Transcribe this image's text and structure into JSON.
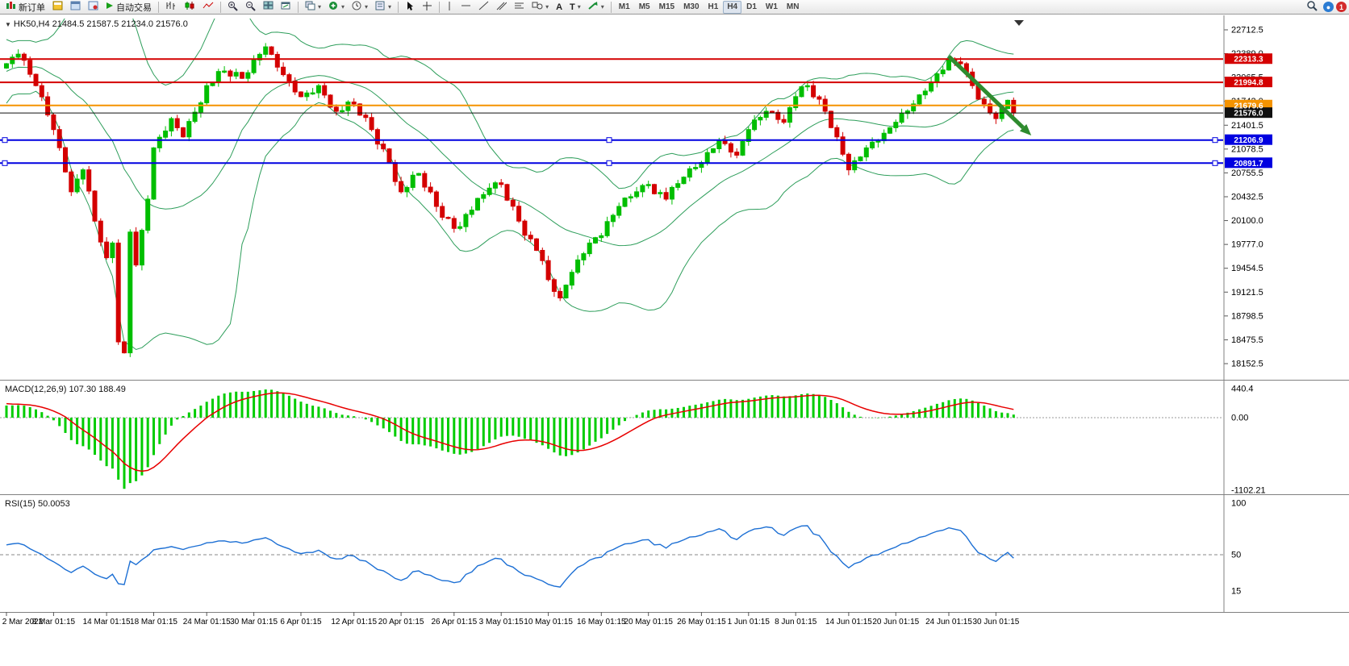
{
  "toolbar": {
    "new_order_label": "新订单",
    "autotrade_label": "自动交易",
    "timeframes": [
      {
        "label": "M1"
      },
      {
        "label": "M5"
      },
      {
        "label": "M15"
      },
      {
        "label": "M30"
      },
      {
        "label": "H1"
      },
      {
        "label": "H4",
        "active": true
      },
      {
        "label": "D1"
      },
      {
        "label": "W1"
      },
      {
        "label": "MN"
      }
    ],
    "notification_badge": "1"
  },
  "chart": {
    "symbol_label": "HK50,H4  21484.5 21587.5 21234.0 21576.0",
    "macd_label": "MACD(12,26,9) 107.30 188.49",
    "rsi_label": "RSI(15) 50.0053"
  },
  "chart_data": [
    {
      "type": "candlestick",
      "symbol": "HK50",
      "timeframe": "H4",
      "ohlc_current": {
        "open": 21484.5,
        "high": 21587.5,
        "low": 21234.0,
        "close": 21576.0
      },
      "price_range": [
        18152.5,
        22712.5
      ],
      "y_axis_ticks": [
        "22712.5",
        "22389.0",
        "22065.5",
        "21742.0",
        "21401.5",
        "21078.5",
        "20755.5",
        "20432.5",
        "20100.0",
        "19777.0",
        "19454.5",
        "19121.5",
        "18798.5",
        "18475.5",
        "18152.5"
      ],
      "x_axis_labels": [
        "2 Mar 2022",
        "8 Mar 01:15",
        "14 Mar 01:15",
        "18 Mar 01:15",
        "24 Mar 01:15",
        "30 Mar 01:15",
        "6 Apr 01:15",
        "12 Apr 01:15",
        "20 Apr 01:15",
        "26 Apr 01:15",
        "3 May 01:15",
        "10 May 01:15",
        "16 May 01:15",
        "20 May 01:15",
        "26 May 01:15",
        "1 Jun 01:15",
        "8 Jun 01:15",
        "14 Jun 01:15",
        "20 Jun 01:15",
        "24 Jun 01:15",
        "30 Jun 01:15"
      ],
      "x_label_indices": [
        0,
        8,
        17,
        25,
        34,
        42,
        50,
        59,
        67,
        76,
        84,
        92,
        101,
        109,
        118,
        126,
        134,
        143,
        151,
        160,
        168
      ],
      "candle_count": 172,
      "close_anchors": [
        [
          0,
          22250
        ],
        [
          2,
          22380
        ],
        [
          5,
          21950
        ],
        [
          8,
          21350
        ],
        [
          11,
          20500
        ],
        [
          13,
          20800
        ],
        [
          15,
          20100
        ],
        [
          17,
          19600
        ],
        [
          18,
          19800
        ],
        [
          19,
          18450
        ],
        [
          20,
          18300
        ],
        [
          21,
          19950
        ],
        [
          22,
          19500
        ],
        [
          24,
          20400
        ],
        [
          25,
          21100
        ],
        [
          28,
          21500
        ],
        [
          30,
          21250
        ],
        [
          34,
          21950
        ],
        [
          37,
          22150
        ],
        [
          40,
          22050
        ],
        [
          42,
          22300
        ],
        [
          44,
          22480
        ],
        [
          47,
          22100
        ],
        [
          50,
          21800
        ],
        [
          53,
          21950
        ],
        [
          56,
          21600
        ],
        [
          59,
          21700
        ],
        [
          62,
          21350
        ],
        [
          65,
          20900
        ],
        [
          67,
          20500
        ],
        [
          70,
          20750
        ],
        [
          73,
          20300
        ],
        [
          76,
          20000
        ],
        [
          79,
          20250
        ],
        [
          82,
          20550
        ],
        [
          84,
          20600
        ],
        [
          87,
          20100
        ],
        [
          90,
          19700
        ],
        [
          92,
          19300
        ],
        [
          94,
          19050
        ],
        [
          96,
          19400
        ],
        [
          99,
          19800
        ],
        [
          101,
          19900
        ],
        [
          104,
          20300
        ],
        [
          107,
          20500
        ],
        [
          109,
          20600
        ],
        [
          112,
          20400
        ],
        [
          115,
          20700
        ],
        [
          118,
          20900
        ],
        [
          121,
          21200
        ],
        [
          124,
          21000
        ],
        [
          126,
          21350
        ],
        [
          129,
          21600
        ],
        [
          132,
          21450
        ],
        [
          134,
          21800
        ],
        [
          136,
          21950
        ],
        [
          139,
          21600
        ],
        [
          141,
          21250
        ],
        [
          143,
          20800
        ],
        [
          146,
          21100
        ],
        [
          149,
          21300
        ],
        [
          151,
          21450
        ],
        [
          154,
          21700
        ],
        [
          157,
          22000
        ],
        [
          160,
          22300
        ],
        [
          162,
          22250
        ],
        [
          164,
          21950
        ],
        [
          166,
          21700
        ],
        [
          168,
          21500
        ],
        [
          170,
          21750
        ],
        [
          171,
          21576
        ]
      ],
      "pre_closes": [
        21300,
        21600,
        22000,
        22300,
        22100,
        21800,
        22200,
        22500,
        22300,
        21900,
        22100,
        22400,
        22200,
        21950,
        22250,
        22450,
        22300,
        22100,
        22000,
        22200
      ],
      "candle_up_color": "#00BE00",
      "candle_down_color": "#D40000",
      "bollinger": {
        "period": 20,
        "deviation": 2,
        "color": "#2E9E5B"
      },
      "hlines": [
        {
          "price": 22313.3,
          "label": "22313.3",
          "color": "#D40000"
        },
        {
          "price": 21994.8,
          "label": "21994.8",
          "color": "#D40000"
        },
        {
          "price": 21679.6,
          "label": "21679.6",
          "color": "#F59300"
        },
        {
          "price": 21576.0,
          "label": "21576.0",
          "color": "#101010",
          "current": true
        },
        {
          "price": 21206.9,
          "label": "21206.9",
          "color": "#0000E0",
          "handles": true
        },
        {
          "price": 20891.7,
          "label": "20891.7",
          "color": "#0000E0",
          "handles": true
        }
      ],
      "arrow": {
        "from": [
          160,
          22350
        ],
        "to": [
          174,
          21270
        ],
        "color": "#2E8B2E"
      }
    },
    {
      "type": "bar",
      "name": "MACD",
      "params": "12,26,9",
      "current_values": [
        "107.30",
        "188.49"
      ],
      "y_axis_ticks": [
        "440.4",
        "0.00",
        "-1102.21"
      ],
      "histogram_color": "#00CC00",
      "signal_color": "#E80000",
      "derived_from": "main closes: EMA12-EMA26, signal EMA9"
    },
    {
      "type": "line",
      "name": "RSI",
      "period": 15,
      "current_value": "50.0053",
      "y_axis_ticks": [
        "100",
        "50",
        "15"
      ],
      "levels": [
        50
      ],
      "line_color": "#1C6FD4",
      "derived_from": "main closes: Wilder RSI(15)"
    }
  ]
}
